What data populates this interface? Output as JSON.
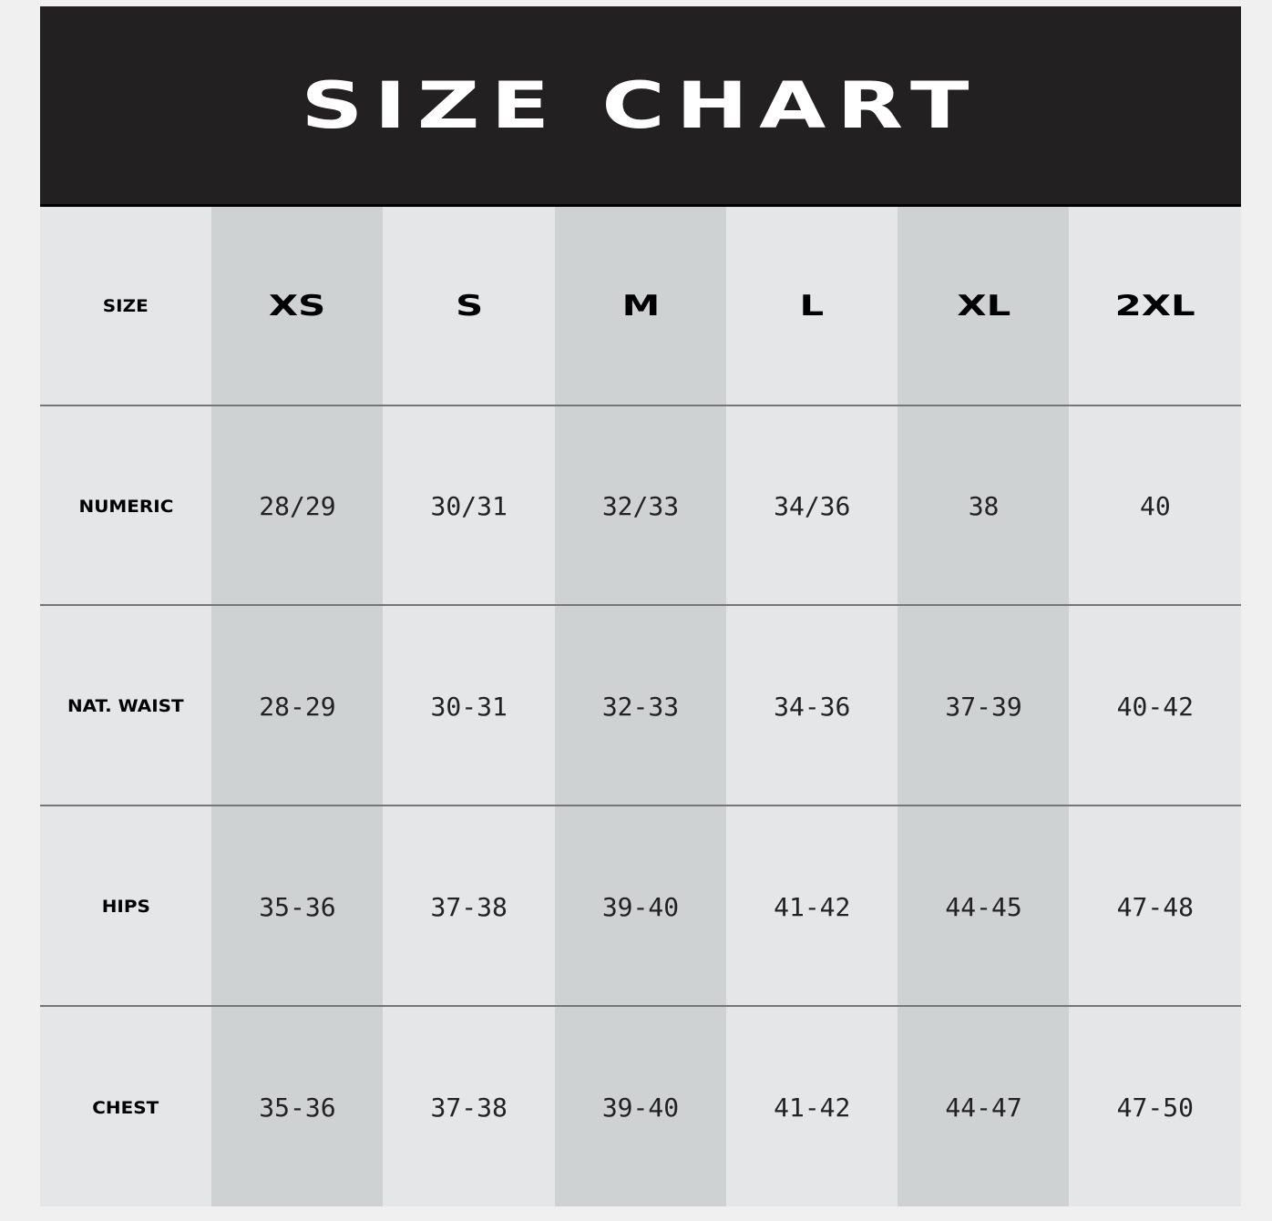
{
  "title": "SIZE CHART",
  "colors": {
    "banner": "#222021",
    "shaded_column": "#cfd2d3",
    "light_column": "#e5e6e8"
  },
  "header": {
    "label": "SIZE",
    "sizes": [
      "XS",
      "S",
      "M",
      "L",
      "XL",
      "2XL"
    ]
  },
  "rows": [
    {
      "label": "NUMERIC",
      "values": [
        "28/29",
        "30/31",
        "32/33",
        "34/36",
        "38",
        "40"
      ]
    },
    {
      "label": "NAT. WAIST",
      "values": [
        "28-29",
        "30-31",
        "32-33",
        "34-36",
        "37-39",
        "40-42"
      ]
    },
    {
      "label": "HIPS",
      "values": [
        "35-36",
        "37-38",
        "39-40",
        "41-42",
        "44-45",
        "47-48"
      ]
    },
    {
      "label": "CHEST",
      "values": [
        "35-36",
        "37-38",
        "39-40",
        "41-42",
        "44-47",
        "47-50"
      ]
    }
  ]
}
